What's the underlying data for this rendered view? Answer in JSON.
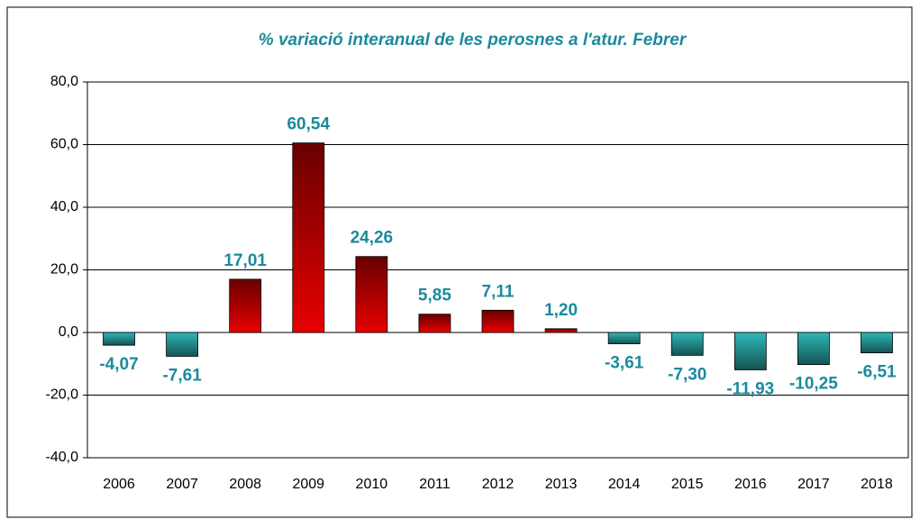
{
  "chart_data": {
    "type": "bar",
    "title": "% variació interanual de les perosnes a l'atur. Febrer",
    "categories": [
      "2006",
      "2007",
      "2008",
      "2009",
      "2010",
      "2011",
      "2012",
      "2013",
      "2014",
      "2015",
      "2016",
      "2017",
      "2018"
    ],
    "values": [
      -4.07,
      -7.61,
      17.01,
      60.54,
      24.26,
      5.85,
      7.11,
      1.2,
      -3.61,
      -7.3,
      -11.93,
      -10.25,
      -6.51
    ],
    "value_labels": [
      "-4,07",
      "-7,61",
      "17,01",
      "60,54",
      "24,26",
      "5,85",
      "7,11",
      "1,20",
      "-3,61",
      "-7,30",
      "-11,93",
      "-10,25",
      "-6,51"
    ],
    "colors": {
      "positive": "#e80000",
      "negative": "#2fb8b8"
    },
    "ylim": [
      -40,
      80
    ],
    "yticks": [
      {
        "value": -40,
        "label": "-40,0"
      },
      {
        "value": -20,
        "label": "-20,0"
      },
      {
        "value": 0,
        "label": "0,0"
      },
      {
        "value": 20,
        "label": "20,0"
      },
      {
        "value": 40,
        "label": "40,0"
      },
      {
        "value": 60,
        "label": "60,0"
      },
      {
        "value": 80,
        "label": "80,0"
      }
    ],
    "grid": true
  }
}
